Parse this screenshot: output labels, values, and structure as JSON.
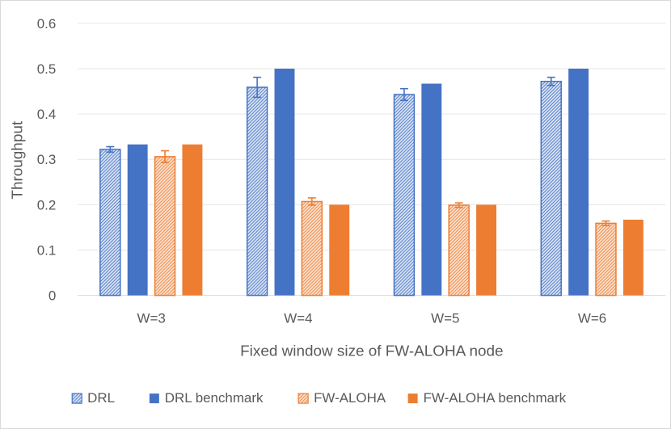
{
  "chart_data": {
    "type": "bar",
    "title": "",
    "xlabel": "Fixed window size of FW-ALOHA node",
    "ylabel": "Throughput",
    "ylim": [
      0,
      0.6
    ],
    "yticks": [
      "0",
      "0.1",
      "0.2",
      "0.3",
      "0.4",
      "0.5",
      "0.6"
    ],
    "grid": true,
    "legend_position": "bottom",
    "categories": [
      "W=3",
      "W=4",
      "W=5",
      "W=6"
    ],
    "series": [
      {
        "name": "DRL",
        "values": [
          0.322,
          0.459,
          0.443,
          0.472
        ],
        "error": [
          0.006,
          0.022,
          0.013,
          0.009
        ],
        "style": "hatched",
        "color": "#4472C4"
      },
      {
        "name": "DRL benchmark",
        "values": [
          0.333,
          0.5,
          0.467,
          0.5
        ],
        "style": "solid",
        "color": "#4472C4"
      },
      {
        "name": "FW-ALOHA",
        "values": [
          0.306,
          0.207,
          0.199,
          0.159
        ],
        "error": [
          0.013,
          0.008,
          0.005,
          0.005
        ],
        "style": "hatched",
        "color": "#ED7D31"
      },
      {
        "name": "FW-ALOHA benchmark",
        "values": [
          0.333,
          0.2,
          0.2,
          0.167
        ],
        "style": "solid",
        "color": "#ED7D31"
      }
    ]
  }
}
